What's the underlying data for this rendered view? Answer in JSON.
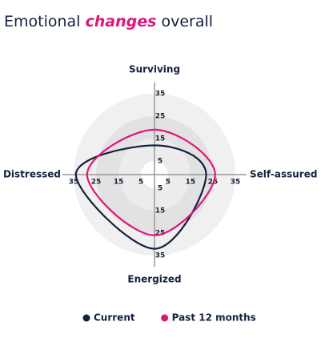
{
  "chart_data": {
    "type": "radar",
    "title_parts": [
      "Emotional",
      "changes",
      "overall"
    ],
    "axes": [
      "Surviving",
      "Self-assured",
      "Energized",
      "Distressed"
    ],
    "rlim": [
      -1,
      35
    ],
    "rticks": [
      5,
      15,
      25,
      35
    ],
    "series": [
      {
        "name": "Current",
        "color": "#13213c",
        "values": [
          12,
          22,
          32,
          34
        ]
      },
      {
        "name": "Past 12 months",
        "color": "#e0167a",
        "values": [
          19,
          26,
          26,
          29
        ]
      }
    ]
  }
}
